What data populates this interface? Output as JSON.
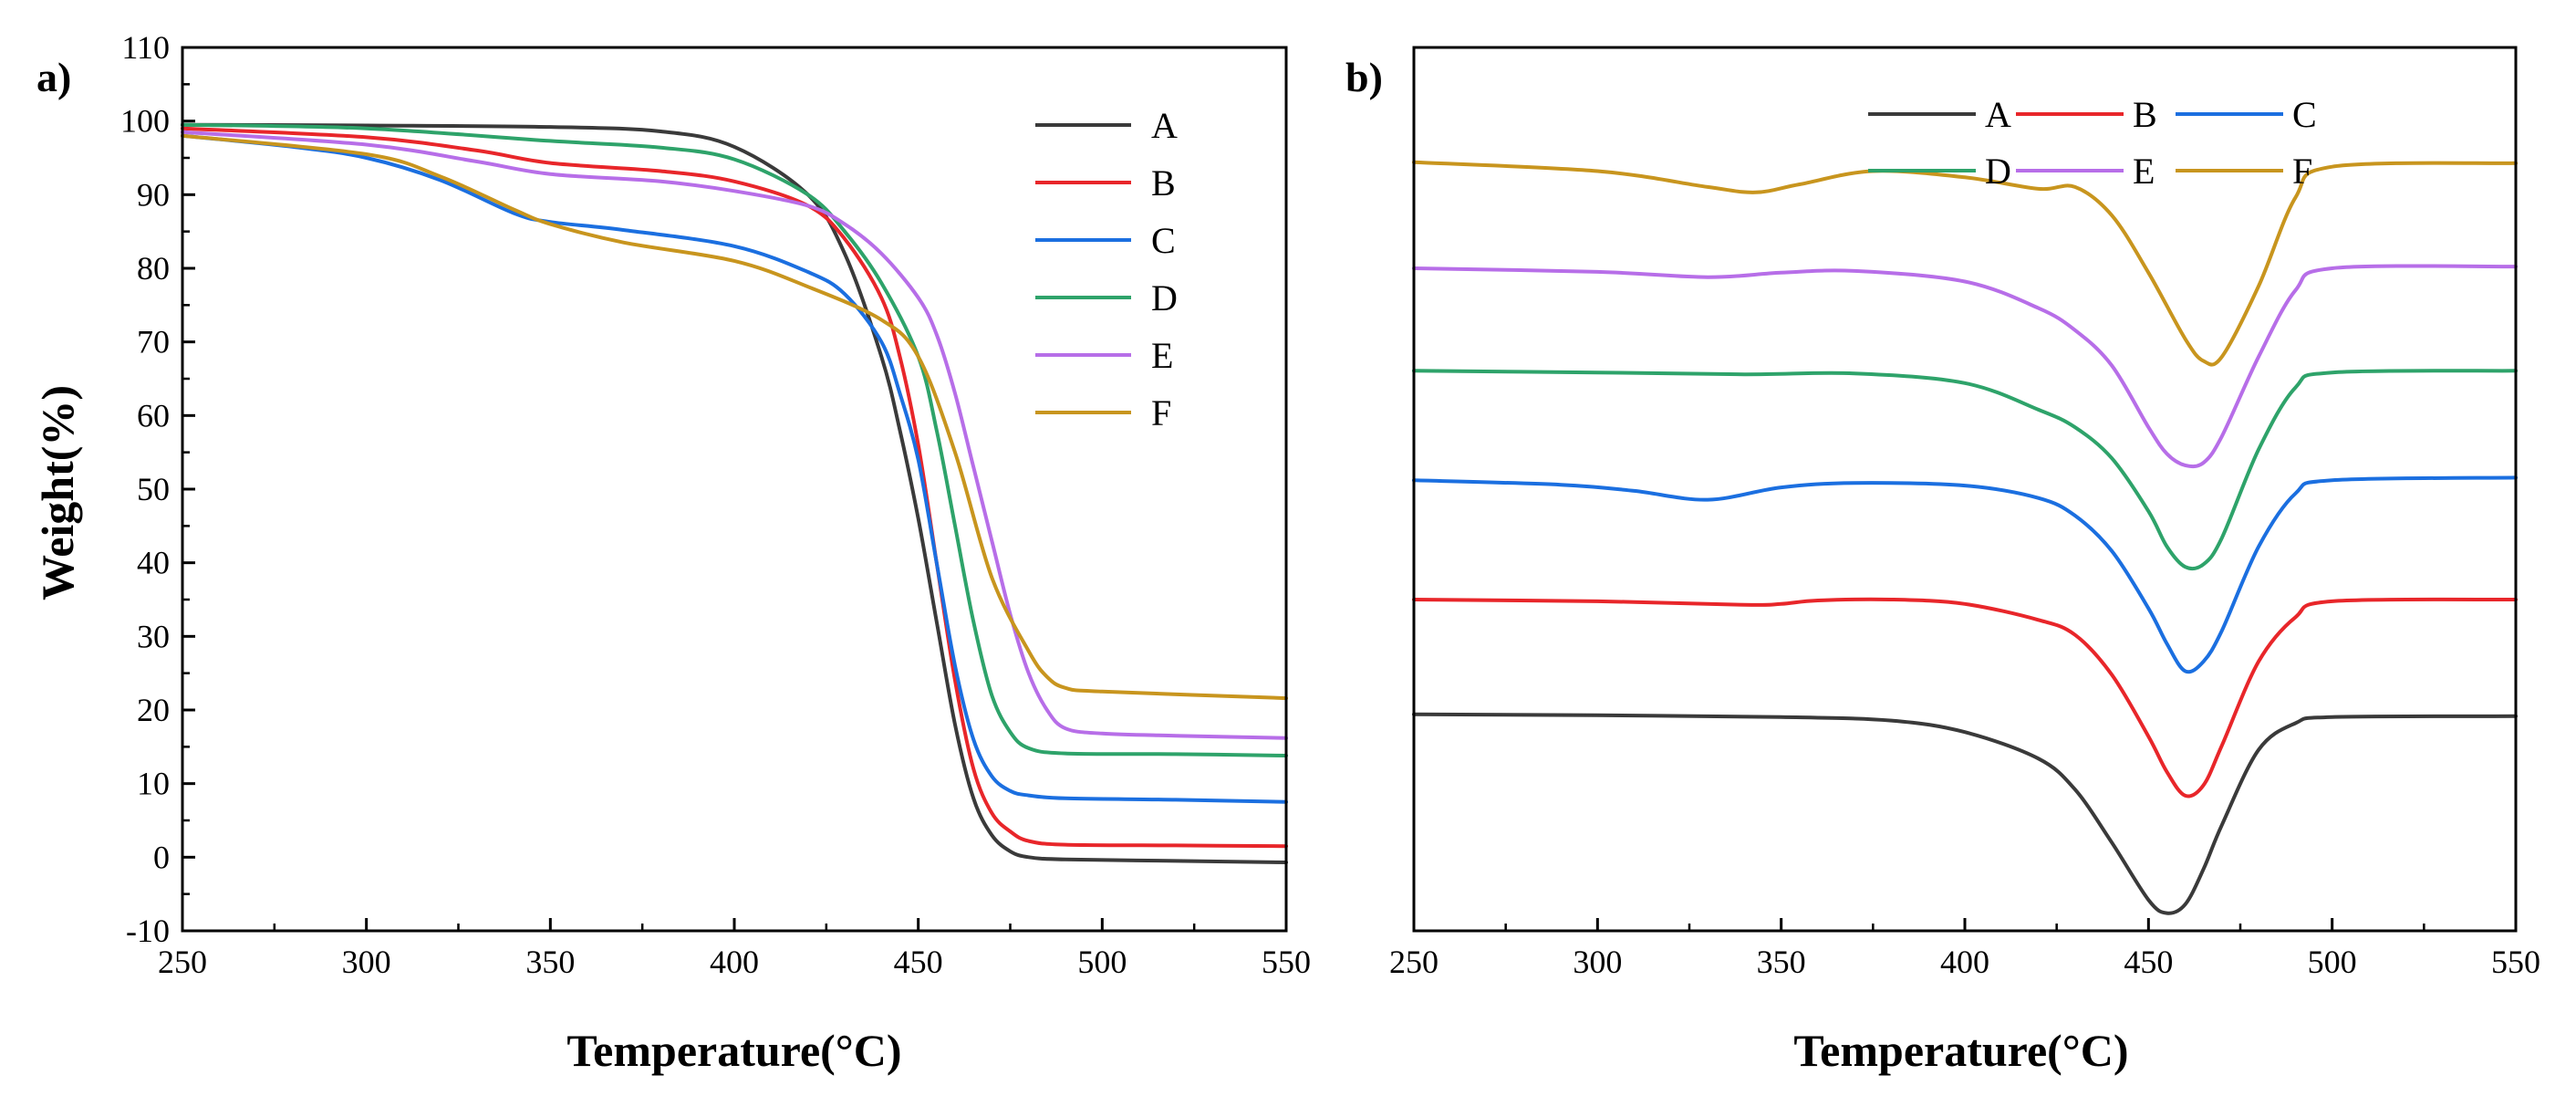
{
  "chart_data": [
    {
      "panel_label": "a)",
      "type": "line",
      "xlabel": "Temperature(°C)",
      "ylabel": "Weight(%)",
      "xlim": [
        250,
        550
      ],
      "ylim": [
        -10,
        110
      ],
      "xticks": [
        250,
        300,
        350,
        400,
        450,
        500,
        550
      ],
      "xtick_labels": [
        "250",
        "300",
        "350",
        "400",
        "450",
        "500",
        "550"
      ],
      "yticks": [
        -10,
        0,
        10,
        20,
        30,
        40,
        50,
        60,
        70,
        80,
        90,
        100,
        110
      ],
      "ytick_labels": [
        "-10",
        "0",
        "10",
        "20",
        "30",
        "40",
        "50",
        "60",
        "70",
        "80",
        "90",
        "100",
        "110"
      ],
      "legend_location": "top-right",
      "series": [
        {
          "name": "A",
          "color": "#3a3a3a",
          "x": [
            250,
            300,
            350,
            380,
            400,
            420,
            430,
            440,
            445,
            450,
            455,
            460,
            465,
            470,
            475,
            480,
            490,
            520,
            550
          ],
          "y": [
            99.5,
            99.4,
            99.2,
            98.6,
            96.5,
            90,
            82,
            68,
            58,
            46,
            32,
            18,
            8,
            3,
            0.8,
            0,
            -0.3,
            -0.5,
            -0.7
          ]
        },
        {
          "name": "B",
          "color": "#e8262a",
          "x": [
            250,
            300,
            330,
            350,
            380,
            400,
            420,
            430,
            440,
            445,
            450,
            455,
            460,
            465,
            470,
            475,
            480,
            490,
            520,
            550
          ],
          "y": [
            99,
            97.8,
            96,
            94.3,
            93.2,
            91.8,
            88.5,
            84,
            76,
            68,
            56,
            40,
            24,
            12,
            6,
            3.5,
            2.2,
            1.7,
            1.6,
            1.5
          ]
        },
        {
          "name": "C",
          "color": "#1b6fe0",
          "x": [
            250,
            280,
            300,
            320,
            340,
            350,
            370,
            400,
            420,
            430,
            440,
            445,
            450,
            455,
            460,
            465,
            470,
            475,
            480,
            490,
            520,
            550
          ],
          "y": [
            98,
            96.5,
            95,
            92,
            87.5,
            86.3,
            85.2,
            83,
            79.5,
            76.5,
            70,
            63,
            54,
            40,
            26,
            16,
            11,
            9,
            8.4,
            8,
            7.8,
            7.5
          ]
        },
        {
          "name": "D",
          "color": "#2ea36a",
          "x": [
            250,
            300,
            350,
            380,
            400,
            420,
            430,
            440,
            450,
            455,
            460,
            465,
            470,
            475,
            480,
            490,
            520,
            550
          ],
          "y": [
            99.5,
            99,
            97.3,
            96.4,
            94.8,
            90,
            85,
            78,
            68,
            58,
            45,
            32,
            22,
            17,
            14.8,
            14.1,
            14,
            13.8
          ]
        },
        {
          "name": "E",
          "color": "#b76ee8",
          "x": [
            250,
            300,
            330,
            350,
            380,
            400,
            420,
            430,
            440,
            450,
            455,
            460,
            465,
            470,
            475,
            480,
            485,
            490,
            500,
            520,
            550
          ],
          "y": [
            98.5,
            96.8,
            94.5,
            92.8,
            91.8,
            90.5,
            88.5,
            86,
            82,
            76,
            71,
            63,
            53,
            43,
            33,
            25,
            20,
            17.5,
            16.8,
            16.5,
            16.2
          ]
        },
        {
          "name": "F",
          "color": "#c8951e",
          "x": [
            250,
            300,
            320,
            340,
            350,
            370,
            400,
            420,
            440,
            450,
            460,
            470,
            480,
            485,
            490,
            500,
            550
          ],
          "y": [
            98,
            95.5,
            92.5,
            88,
            86,
            83.5,
            81,
            77.5,
            73,
            68,
            55,
            38,
            28,
            24.5,
            23,
            22.5,
            21.6
          ]
        }
      ]
    },
    {
      "panel_label": "b)",
      "type": "line",
      "xlabel": "Temperature(°C)",
      "ylabel": "",
      "xlim": [
        250,
        550
      ],
      "ylim": [
        0,
        100
      ],
      "xticks": [
        250,
        300,
        350,
        400,
        450,
        500,
        550
      ],
      "xtick_labels": [
        "250",
        "300",
        "350",
        "400",
        "450",
        "500",
        "550"
      ],
      "yticks": [],
      "legend_location": "top-center",
      "series": [
        {
          "name": "A",
          "color": "#3a3a3a",
          "x": [
            250,
            300,
            350,
            380,
            400,
            420,
            430,
            440,
            450,
            455,
            460,
            465,
            470,
            480,
            490,
            500,
            550
          ],
          "y": [
            24.5,
            24.4,
            24.2,
            23.8,
            22.5,
            19.5,
            16,
            10,
            3.5,
            2,
            3,
            7,
            12,
            20.5,
            23.5,
            24.2,
            24.3
          ]
        },
        {
          "name": "B",
          "color": "#e8262a",
          "x": [
            250,
            300,
            340,
            350,
            360,
            380,
            400,
            420,
            430,
            440,
            450,
            455,
            460,
            465,
            470,
            480,
            490,
            500,
            550
          ],
          "y": [
            37.5,
            37.3,
            36.9,
            37.0,
            37.4,
            37.5,
            37,
            35.2,
            33.5,
            29,
            22,
            18,
            15.3,
            16.5,
            21,
            30.5,
            35.5,
            37.3,
            37.5
          ]
        },
        {
          "name": "C",
          "color": "#1b6fe0",
          "x": [
            250,
            290,
            310,
            330,
            350,
            370,
            400,
            420,
            430,
            440,
            450,
            455,
            460,
            465,
            470,
            480,
            490,
            500,
            550
          ],
          "y": [
            51,
            50.5,
            49.8,
            48.8,
            50.2,
            50.7,
            50.4,
            49,
            47,
            43,
            36.5,
            32.5,
            29.4,
            30.5,
            34,
            43.5,
            49.5,
            51,
            51.3
          ]
        },
        {
          "name": "D",
          "color": "#2ea36a",
          "x": [
            250,
            300,
            340,
            370,
            400,
            420,
            430,
            440,
            450,
            455,
            460,
            465,
            470,
            480,
            490,
            500,
            550
          ],
          "y": [
            63.4,
            63.2,
            63.0,
            63.1,
            62,
            59,
            57,
            53.5,
            47.5,
            43.5,
            41.2,
            41.5,
            44.5,
            54.5,
            61.5,
            63.2,
            63.4
          ]
        },
        {
          "name": "E",
          "color": "#b76ee8",
          "x": [
            250,
            300,
            330,
            350,
            370,
            400,
            420,
            430,
            440,
            450,
            455,
            460,
            465,
            470,
            480,
            490,
            500,
            550
          ],
          "y": [
            75,
            74.6,
            74.0,
            74.5,
            74.7,
            73.5,
            70.5,
            68,
            64,
            57,
            54,
            52.7,
            53,
            56,
            65,
            72.5,
            75,
            75.2
          ]
        },
        {
          "name": "F",
          "color": "#c8951e",
          "x": [
            250,
            300,
            330,
            343,
            355,
            375,
            400,
            420,
            430,
            440,
            450,
            460,
            465,
            470,
            480,
            490,
            500,
            550
          ],
          "y": [
            87,
            86,
            84.2,
            83.6,
            84.5,
            86,
            85.3,
            84,
            84.2,
            81,
            74.5,
            67,
            64.5,
            65,
            73,
            83,
            86.5,
            86.9
          ]
        }
      ]
    }
  ]
}
